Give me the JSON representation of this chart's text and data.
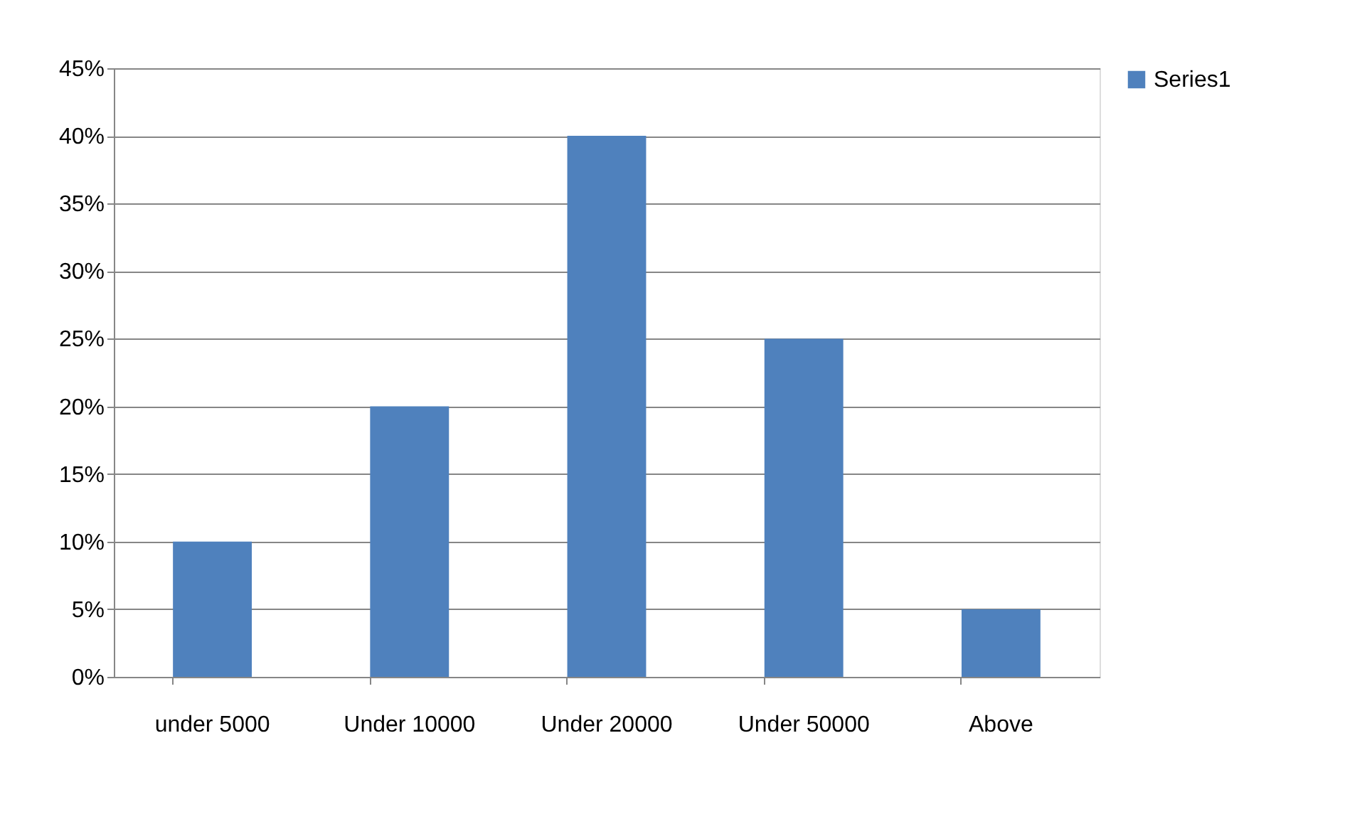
{
  "chart_data": {
    "type": "bar",
    "categories": [
      "under 5000",
      "Under 10000",
      "Under 20000",
      "Under 50000",
      "Above"
    ],
    "series": [
      {
        "name": "Series1",
        "color": "#4f81bd",
        "values": [
          10,
          20,
          40,
          25,
          5
        ]
      }
    ],
    "ylim": [
      0,
      45
    ],
    "yticks": [
      {
        "value": 0,
        "label": "0%"
      },
      {
        "value": 5,
        "label": "5%"
      },
      {
        "value": 10,
        "label": "10%"
      },
      {
        "value": 15,
        "label": "15%"
      },
      {
        "value": 20,
        "label": "20%"
      },
      {
        "value": 25,
        "label": "25%"
      },
      {
        "value": 30,
        "label": "30%"
      },
      {
        "value": 35,
        "label": "35%"
      },
      {
        "value": 40,
        "label": "40%"
      },
      {
        "value": 45,
        "label": "45%"
      }
    ],
    "grid": "y",
    "legend": "right"
  }
}
